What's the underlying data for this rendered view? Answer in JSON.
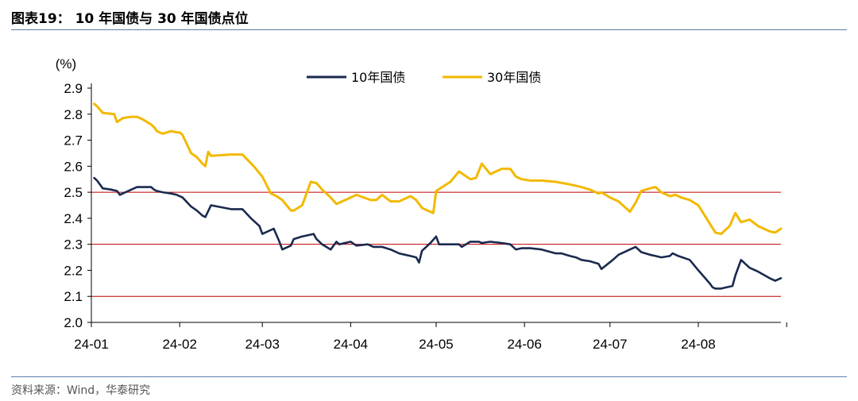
{
  "header": {
    "title": "图表19：   10 年国债与 30 年国债点位"
  },
  "footer": {
    "source": "资料来源：Wind，华泰研究"
  },
  "colors": {
    "series_10y": "#1a2a4e",
    "series_30y": "#f2b900",
    "ref_line": "#c00000",
    "axis": "#000000",
    "rule": "#5b7fa6"
  },
  "chart_data": {
    "type": "line",
    "ylabel": "(%)",
    "xlabel": "",
    "ylim": [
      2.0,
      2.9
    ],
    "yticks": [
      "2.0",
      "2.1",
      "2.2",
      "2.3",
      "2.4",
      "2.5",
      "2.6",
      "2.7",
      "2.8",
      "2.9"
    ],
    "x_tick_labels": [
      "24-01",
      "24-02",
      "24-03",
      "24-04",
      "24-05",
      "24-06",
      "24-07",
      "24-08"
    ],
    "x_range": [
      "2024-01-01",
      "2024-08-30"
    ],
    "reference_lines": [
      2.1,
      2.3,
      2.5
    ],
    "legend_position": "top-center",
    "series": [
      {
        "name": "10年国债",
        "x": [
          "2024-01-02",
          "2024-01-03",
          "2024-01-05",
          "2024-01-08",
          "2024-01-10",
          "2024-01-11",
          "2024-01-12",
          "2024-01-15",
          "2024-01-17",
          "2024-01-19",
          "2024-01-22",
          "2024-01-23",
          "2024-01-24",
          "2024-01-26",
          "2024-01-29",
          "2024-01-31",
          "2024-02-02",
          "2024-02-05",
          "2024-02-07",
          "2024-02-08",
          "2024-02-09",
          "2024-02-10",
          "2024-02-12",
          "2024-02-19",
          "2024-02-23",
          "2024-02-26",
          "2024-02-29",
          "2024-03-01",
          "2024-03-05",
          "2024-03-07",
          "2024-03-08",
          "2024-03-11",
          "2024-03-12",
          "2024-03-15",
          "2024-03-19",
          "2024-03-20",
          "2024-03-22",
          "2024-03-25",
          "2024-03-27",
          "2024-03-28",
          "2024-04-01",
          "2024-04-03",
          "2024-04-07",
          "2024-04-09",
          "2024-04-12",
          "2024-04-15",
          "2024-04-18",
          "2024-04-22",
          "2024-04-24",
          "2024-04-25",
          "2024-04-26",
          "2024-04-29",
          "2024-05-01",
          "2024-05-02",
          "2024-05-06",
          "2024-05-09",
          "2024-05-10",
          "2024-05-13",
          "2024-05-16",
          "2024-05-17",
          "2024-05-20",
          "2024-05-24",
          "2024-05-27",
          "2024-05-29",
          "2024-05-31",
          "2024-06-03",
          "2024-06-07",
          "2024-06-12",
          "2024-06-14",
          "2024-06-17",
          "2024-06-19",
          "2024-06-21",
          "2024-06-24",
          "2024-06-27",
          "2024-06-28",
          "2024-07-02",
          "2024-07-04",
          "2024-07-08",
          "2024-07-10",
          "2024-07-12",
          "2024-07-15",
          "2024-07-17",
          "2024-07-19",
          "2024-07-22",
          "2024-07-23",
          "2024-07-25",
          "2024-07-29",
          "2024-08-01",
          "2024-08-05",
          "2024-08-06",
          "2024-08-07",
          "2024-08-09",
          "2024-08-13",
          "2024-08-14",
          "2024-08-16",
          "2024-08-19",
          "2024-08-22",
          "2024-08-26",
          "2024-08-28",
          "2024-08-30"
        ],
        "y": [
          2.555,
          2.545,
          2.515,
          2.51,
          2.505,
          2.49,
          2.495,
          2.51,
          2.52,
          2.52,
          2.52,
          2.51,
          2.505,
          2.5,
          2.495,
          2.49,
          2.48,
          2.445,
          2.43,
          2.42,
          2.41,
          2.405,
          2.45,
          2.435,
          2.435,
          2.4,
          2.37,
          2.34,
          2.36,
          2.31,
          2.28,
          2.295,
          2.32,
          2.33,
          2.34,
          2.32,
          2.3,
          2.28,
          2.31,
          2.3,
          2.31,
          2.295,
          2.3,
          2.29,
          2.29,
          2.28,
          2.265,
          2.255,
          2.25,
          2.23,
          2.275,
          2.305,
          2.33,
          2.3,
          2.3,
          2.3,
          2.29,
          2.31,
          2.31,
          2.305,
          2.31,
          2.305,
          2.3,
          2.28,
          2.285,
          2.285,
          2.28,
          2.265,
          2.265,
          2.255,
          2.25,
          2.24,
          2.235,
          2.225,
          2.205,
          2.24,
          2.26,
          2.28,
          2.29,
          2.27,
          2.26,
          2.255,
          2.25,
          2.255,
          2.265,
          2.255,
          2.24,
          2.2,
          2.15,
          2.135,
          2.13,
          2.13,
          2.14,
          2.18,
          2.24,
          2.21,
          2.195,
          2.17,
          2.16,
          2.17
        ],
        "color": "#1a2a4e"
      },
      {
        "name": "30年国债",
        "x": [
          "2024-01-02",
          "2024-01-03",
          "2024-01-05",
          "2024-01-09",
          "2024-01-10",
          "2024-01-12",
          "2024-01-15",
          "2024-01-17",
          "2024-01-19",
          "2024-01-22",
          "2024-01-23",
          "2024-01-24",
          "2024-01-26",
          "2024-01-29",
          "2024-01-31",
          "2024-02-01",
          "2024-02-02",
          "2024-02-05",
          "2024-02-07",
          "2024-02-09",
          "2024-02-10",
          "2024-02-11",
          "2024-02-12",
          "2024-02-19",
          "2024-02-23",
          "2024-02-27",
          "2024-03-01",
          "2024-03-04",
          "2024-03-06",
          "2024-03-08",
          "2024-03-11",
          "2024-03-12",
          "2024-03-15",
          "2024-03-18",
          "2024-03-20",
          "2024-03-22",
          "2024-03-25",
          "2024-03-27",
          "2024-03-29",
          "2024-04-01",
          "2024-04-03",
          "2024-04-08",
          "2024-04-10",
          "2024-04-12",
          "2024-04-15",
          "2024-04-18",
          "2024-04-22",
          "2024-04-24",
          "2024-04-26",
          "2024-04-28",
          "2024-04-30",
          "2024-05-01",
          "2024-05-06",
          "2024-05-09",
          "2024-05-13",
          "2024-05-15",
          "2024-05-17",
          "2024-05-20",
          "2024-05-24",
          "2024-05-27",
          "2024-05-29",
          "2024-05-31",
          "2024-06-03",
          "2024-06-07",
          "2024-06-12",
          "2024-06-17",
          "2024-06-21",
          "2024-06-24",
          "2024-06-27",
          "2024-06-28",
          "2024-07-01",
          "2024-07-04",
          "2024-07-08",
          "2024-07-10",
          "2024-07-12",
          "2024-07-15",
          "2024-07-17",
          "2024-07-19",
          "2024-07-22",
          "2024-07-24",
          "2024-07-26",
          "2024-07-29",
          "2024-08-01",
          "2024-08-05",
          "2024-08-07",
          "2024-08-09",
          "2024-08-12",
          "2024-08-14",
          "2024-08-16",
          "2024-08-19",
          "2024-08-22",
          "2024-08-26",
          "2024-08-28",
          "2024-08-30"
        ],
        "y": [
          2.84,
          2.83,
          2.805,
          2.8,
          2.77,
          2.785,
          2.79,
          2.79,
          2.78,
          2.76,
          2.75,
          2.735,
          2.725,
          2.735,
          2.73,
          2.73,
          2.72,
          2.65,
          2.635,
          2.61,
          2.6,
          2.655,
          2.64,
          2.645,
          2.645,
          2.6,
          2.56,
          2.495,
          2.485,
          2.47,
          2.43,
          2.43,
          2.45,
          2.54,
          2.535,
          2.51,
          2.48,
          2.455,
          2.465,
          2.48,
          2.49,
          2.47,
          2.47,
          2.49,
          2.465,
          2.465,
          2.485,
          2.47,
          2.44,
          2.43,
          2.42,
          2.505,
          2.54,
          2.58,
          2.55,
          2.555,
          2.61,
          2.57,
          2.59,
          2.59,
          2.56,
          2.55,
          2.545,
          2.545,
          2.54,
          2.53,
          2.52,
          2.51,
          2.495,
          2.5,
          2.48,
          2.465,
          2.425,
          2.46,
          2.505,
          2.515,
          2.52,
          2.5,
          2.485,
          2.49,
          2.48,
          2.47,
          2.45,
          2.38,
          2.345,
          2.34,
          2.37,
          2.42,
          2.385,
          2.395,
          2.37,
          2.35,
          2.345,
          2.36
        ],
        "color": "#f2b900"
      }
    ]
  }
}
